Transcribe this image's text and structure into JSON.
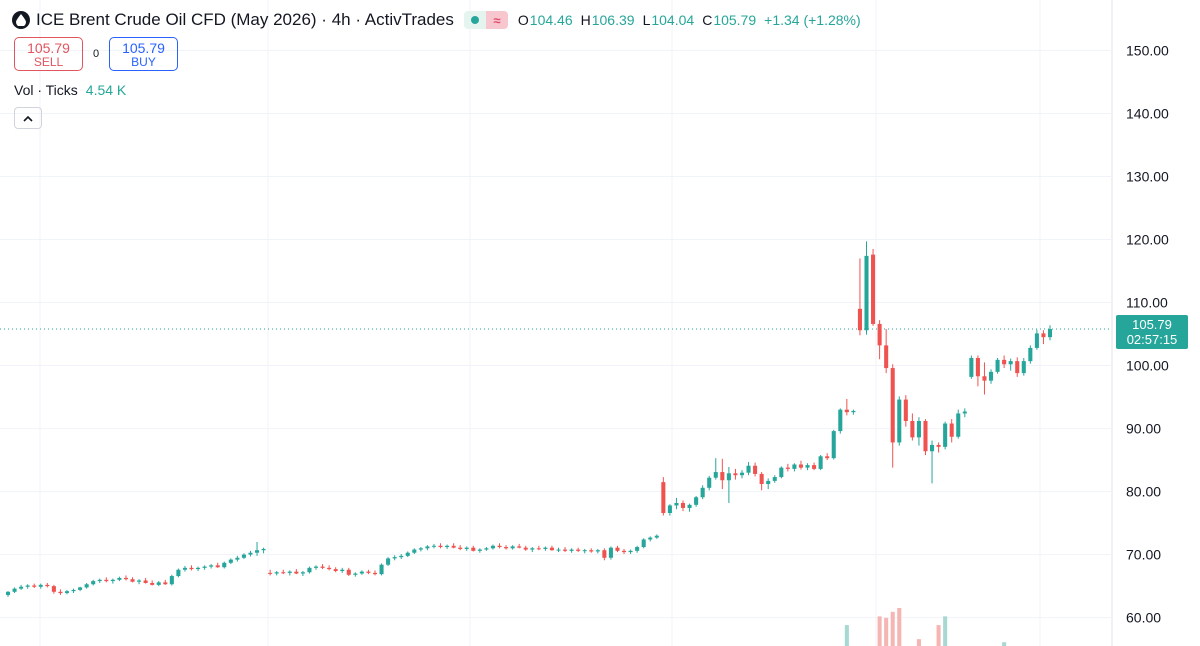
{
  "header": {
    "title": "ICE Brent Crude Oil CFD (May 2026) · 4h · ActivTrades",
    "wave_symbol": "≈",
    "ohlc": [
      {
        "key": "O",
        "value": "104.46"
      },
      {
        "key": "H",
        "value": "106.39"
      },
      {
        "key": "L",
        "value": "104.04"
      },
      {
        "key": "C",
        "value": "105.79"
      }
    ],
    "change": "+1.34 (+1.28%)"
  },
  "trade": {
    "sell_price": "105.79",
    "sell_label": "SELL",
    "spread": "0",
    "buy_price": "105.79",
    "buy_label": "BUY"
  },
  "volume": {
    "label": "Vol · Ticks",
    "value": "4.54 K"
  },
  "price_tag": {
    "price": "105.79",
    "countdown": "02:57:15"
  },
  "colors": {
    "up": "#26a69a",
    "down": "#ef5350",
    "grid": "#f0f3fa",
    "last_line": "#26a69a"
  },
  "chart_data": {
    "type": "candlestick",
    "y_ticks": [
      "150.00",
      "140.00",
      "130.00",
      "120.00",
      "110.00",
      "100.00",
      "90.00",
      "80.00",
      "70.00",
      "60.00"
    ],
    "ylim": [
      55.5,
      158
    ],
    "last_price": 105.79,
    "candles": [
      [
        63.6,
        64.2,
        63.3,
        64.1
      ],
      [
        64.1,
        64.8,
        63.9,
        64.6
      ],
      [
        64.6,
        65.2,
        64.4,
        64.9
      ],
      [
        64.9,
        65.3,
        64.6,
        65.1
      ],
      [
        65.1,
        65.4,
        64.7,
        64.9
      ],
      [
        64.9,
        65.4,
        64.6,
        65.2
      ],
      [
        65.2,
        65.5,
        64.8,
        65.0
      ],
      [
        65.0,
        65.2,
        63.8,
        64.1
      ],
      [
        64.1,
        64.5,
        63.6,
        63.9
      ],
      [
        63.9,
        64.4,
        63.7,
        64.2
      ],
      [
        64.2,
        64.6,
        63.9,
        64.4
      ],
      [
        64.4,
        64.9,
        64.2,
        64.8
      ],
      [
        64.8,
        65.5,
        64.6,
        65.3
      ],
      [
        65.3,
        66.0,
        65.1,
        65.8
      ],
      [
        65.8,
        66.2,
        65.5,
        66.0
      ],
      [
        66.0,
        66.4,
        65.6,
        65.8
      ],
      [
        65.8,
        66.2,
        65.4,
        66.0
      ],
      [
        66.0,
        66.5,
        65.8,
        66.3
      ],
      [
        66.3,
        66.7,
        65.9,
        66.1
      ],
      [
        66.1,
        66.4,
        65.6,
        65.7
      ],
      [
        65.7,
        66.1,
        65.3,
        65.9
      ],
      [
        65.9,
        66.3,
        65.4,
        65.5
      ],
      [
        65.5,
        65.9,
        65.1,
        65.2
      ],
      [
        65.2,
        65.8,
        65.0,
        65.6
      ],
      [
        65.6,
        66.0,
        65.2,
        65.3
      ],
      [
        65.3,
        66.8,
        65.1,
        66.6
      ],
      [
        66.6,
        67.8,
        66.4,
        67.6
      ],
      [
        67.6,
        68.2,
        67.3,
        67.9
      ],
      [
        67.9,
        68.3,
        67.5,
        67.7
      ],
      [
        67.7,
        68.1,
        67.4,
        67.9
      ],
      [
        67.9,
        68.3,
        67.6,
        68.1
      ],
      [
        68.1,
        68.5,
        67.8,
        68.3
      ],
      [
        68.3,
        68.7,
        67.9,
        68.0
      ],
      [
        68.0,
        68.9,
        67.8,
        68.7
      ],
      [
        68.7,
        69.4,
        68.5,
        69.2
      ],
      [
        69.2,
        69.8,
        68.9,
        69.5
      ],
      [
        69.5,
        70.2,
        69.3,
        70.0
      ],
      [
        70.0,
        70.6,
        69.7,
        70.3
      ],
      [
        70.3,
        72.0,
        69.8,
        70.7
      ],
      [
        70.7,
        71.1,
        70.2,
        70.9
      ],
      [
        67.1,
        67.6,
        66.7,
        67.0
      ],
      [
        67.0,
        67.4,
        66.7,
        67.2
      ],
      [
        67.2,
        67.6,
        66.9,
        67.1
      ],
      [
        67.1,
        67.5,
        66.7,
        67.3
      ],
      [
        67.3,
        67.7,
        66.9,
        67.0
      ],
      [
        67.0,
        67.4,
        66.6,
        67.2
      ],
      [
        67.2,
        68.1,
        67.0,
        67.9
      ],
      [
        67.9,
        68.3,
        67.6,
        68.1
      ],
      [
        68.1,
        68.5,
        67.7,
        67.9
      ],
      [
        67.9,
        68.3,
        67.5,
        67.7
      ],
      [
        67.7,
        68.0,
        67.2,
        67.4
      ],
      [
        67.4,
        67.9,
        67.1,
        67.6
      ],
      [
        67.6,
        67.9,
        66.6,
        66.8
      ],
      [
        66.8,
        67.2,
        66.5,
        67.0
      ],
      [
        67.0,
        67.5,
        66.8,
        67.3
      ],
      [
        67.3,
        67.6,
        66.9,
        67.1
      ],
      [
        67.1,
        67.5,
        66.7,
        66.9
      ],
      [
        66.9,
        68.6,
        66.7,
        68.4
      ],
      [
        68.4,
        69.6,
        68.2,
        69.4
      ],
      [
        69.4,
        69.9,
        69.1,
        69.6
      ],
      [
        69.6,
        70.1,
        69.3,
        69.8
      ],
      [
        69.8,
        70.5,
        69.6,
        70.3
      ],
      [
        70.3,
        71.0,
        70.1,
        70.8
      ],
      [
        70.8,
        71.2,
        70.5,
        71.0
      ],
      [
        71.0,
        71.5,
        70.7,
        71.3
      ],
      [
        71.3,
        71.7,
        71.0,
        71.4
      ],
      [
        71.4,
        71.8,
        71.0,
        71.2
      ],
      [
        71.2,
        71.6,
        70.9,
        71.4
      ],
      [
        71.4,
        71.8,
        71.0,
        71.1
      ],
      [
        71.1,
        71.5,
        70.7,
        70.9
      ],
      [
        70.9,
        71.3,
        70.6,
        71.1
      ],
      [
        71.1,
        71.4,
        70.5,
        70.6
      ],
      [
        70.6,
        71.0,
        70.3,
        70.8
      ],
      [
        70.8,
        71.2,
        70.6,
        71.0
      ],
      [
        71.0,
        71.6,
        70.8,
        71.4
      ],
      [
        71.4,
        71.8,
        71.0,
        71.2
      ],
      [
        71.2,
        71.5,
        70.8,
        71.0
      ],
      [
        71.0,
        71.5,
        70.8,
        71.3
      ],
      [
        71.3,
        71.7,
        71.0,
        71.1
      ],
      [
        71.1,
        71.4,
        70.6,
        70.8
      ],
      [
        70.8,
        71.2,
        70.4,
        71.0
      ],
      [
        71.0,
        71.4,
        70.7,
        70.9
      ],
      [
        70.9,
        71.3,
        70.6,
        71.1
      ],
      [
        71.1,
        71.4,
        70.6,
        70.7
      ],
      [
        70.7,
        71.1,
        70.4,
        70.8
      ],
      [
        70.8,
        71.2,
        70.4,
        70.6
      ],
      [
        70.6,
        71.0,
        70.3,
        70.8
      ],
      [
        70.8,
        71.1,
        70.4,
        70.6
      ],
      [
        70.6,
        70.9,
        70.2,
        70.7
      ],
      [
        70.7,
        71.0,
        70.3,
        70.5
      ],
      [
        70.5,
        70.9,
        70.2,
        70.7
      ],
      [
        70.7,
        71.0,
        69.1,
        69.5
      ],
      [
        69.5,
        71.3,
        69.2,
        71.1
      ],
      [
        71.1,
        71.4,
        70.4,
        70.6
      ],
      [
        70.6,
        70.9,
        70.1,
        70.4
      ],
      [
        70.4,
        70.8,
        70.1,
        70.6
      ],
      [
        70.6,
        71.4,
        70.3,
        71.2
      ],
      [
        71.2,
        72.6,
        71.0,
        72.4
      ],
      [
        72.4,
        72.9,
        72.1,
        72.7
      ],
      [
        72.7,
        73.2,
        72.5,
        73.0
      ],
      [
        81.5,
        82.3,
        76.2,
        76.6
      ],
      [
        76.6,
        78.0,
        76.2,
        77.8
      ],
      [
        77.8,
        79.0,
        77.2,
        78.2
      ],
      [
        78.2,
        78.6,
        76.9,
        77.4
      ],
      [
        77.4,
        78.1,
        76.8,
        77.9
      ],
      [
        77.9,
        79.3,
        77.6,
        79.1
      ],
      [
        79.1,
        81.0,
        78.8,
        80.6
      ],
      [
        80.6,
        82.5,
        80.2,
        82.2
      ],
      [
        82.2,
        85.3,
        81.9,
        83.1
      ],
      [
        83.1,
        85.2,
        80.4,
        81.8
      ],
      [
        81.8,
        83.9,
        78.2,
        82.9
      ],
      [
        82.9,
        83.6,
        81.9,
        82.6
      ],
      [
        82.6,
        83.4,
        82.1,
        83.0
      ],
      [
        83.0,
        84.7,
        82.6,
        84.1
      ],
      [
        84.1,
        84.6,
        82.4,
        82.8
      ],
      [
        82.8,
        83.1,
        80.2,
        81.2
      ],
      [
        81.2,
        82.1,
        80.4,
        81.7
      ],
      [
        81.7,
        82.6,
        81.4,
        82.3
      ],
      [
        82.3,
        84.0,
        82.1,
        83.8
      ],
      [
        83.8,
        84.4,
        83.2,
        83.6
      ],
      [
        83.6,
        84.5,
        83.2,
        84.3
      ],
      [
        84.3,
        84.9,
        83.5,
        83.8
      ],
      [
        83.8,
        84.5,
        83.4,
        84.2
      ],
      [
        84.2,
        84.6,
        83.4,
        83.6
      ],
      [
        83.6,
        85.8,
        83.4,
        85.6
      ],
      [
        85.6,
        86.1,
        85.0,
        85.3
      ],
      [
        85.3,
        89.8,
        85.1,
        89.6
      ],
      [
        89.6,
        93.2,
        89.2,
        93.0
      ],
      [
        93.0,
        94.7,
        92.1,
        92.6
      ],
      [
        92.6,
        93.0,
        92.2,
        92.8
      ],
      [
        109.0,
        117.0,
        104.8,
        105.6
      ],
      [
        105.6,
        119.7,
        104.9,
        117.4
      ],
      [
        117.6,
        118.5,
        106.3,
        106.6
      ],
      [
        106.6,
        107.2,
        101.0,
        103.2
      ],
      [
        103.2,
        105.8,
        98.8,
        99.6
      ],
      [
        99.6,
        100.2,
        83.8,
        87.8
      ],
      [
        87.8,
        95.1,
        87.3,
        94.6
      ],
      [
        94.6,
        95.3,
        90.3,
        91.2
      ],
      [
        91.2,
        92.4,
        88.1,
        88.6
      ],
      [
        88.6,
        91.8,
        87.3,
        91.2
      ],
      [
        91.2,
        91.5,
        85.8,
        86.4
      ],
      [
        86.4,
        88.1,
        81.3,
        87.4
      ],
      [
        87.4,
        87.8,
        86.2,
        87.1
      ],
      [
        87.1,
        91.1,
        86.7,
        90.8
      ],
      [
        90.8,
        91.5,
        87.8,
        88.7
      ],
      [
        88.7,
        93.0,
        88.4,
        92.4
      ],
      [
        92.4,
        93.2,
        91.8,
        92.7
      ],
      [
        98.2,
        101.6,
        97.9,
        101.2
      ],
      [
        101.2,
        101.6,
        96.7,
        98.3
      ],
      [
        98.3,
        100.5,
        95.4,
        97.6
      ],
      [
        97.6,
        99.4,
        97.1,
        99.0
      ],
      [
        99.0,
        101.2,
        98.7,
        100.9
      ],
      [
        100.9,
        101.6,
        99.6,
        100.2
      ],
      [
        100.2,
        101.1,
        99.2,
        100.7
      ],
      [
        100.7,
        101.3,
        98.2,
        98.8
      ],
      [
        98.8,
        101.2,
        98.4,
        100.7
      ],
      [
        100.7,
        103.2,
        100.3,
        102.8
      ],
      [
        102.8,
        105.7,
        102.5,
        105.1
      ],
      [
        105.1,
        105.6,
        103.4,
        104.5
      ],
      [
        104.5,
        106.4,
        104.0,
        105.79
      ]
    ],
    "volume_bars": [
      {
        "index": 128,
        "value": 0.55,
        "direction": "up"
      },
      {
        "index": 133,
        "value": 0.78,
        "direction": "down"
      },
      {
        "index": 134,
        "value": 0.74,
        "direction": "down"
      },
      {
        "index": 135,
        "value": 0.9,
        "direction": "down"
      },
      {
        "index": 136,
        "value": 1.0,
        "direction": "down"
      },
      {
        "index": 139,
        "value": 0.18,
        "direction": "down"
      },
      {
        "index": 142,
        "value": 0.55,
        "direction": "down"
      },
      {
        "index": 143,
        "value": 0.78,
        "direction": "up"
      },
      {
        "index": 152,
        "value": 0.1,
        "direction": "up"
      }
    ]
  }
}
